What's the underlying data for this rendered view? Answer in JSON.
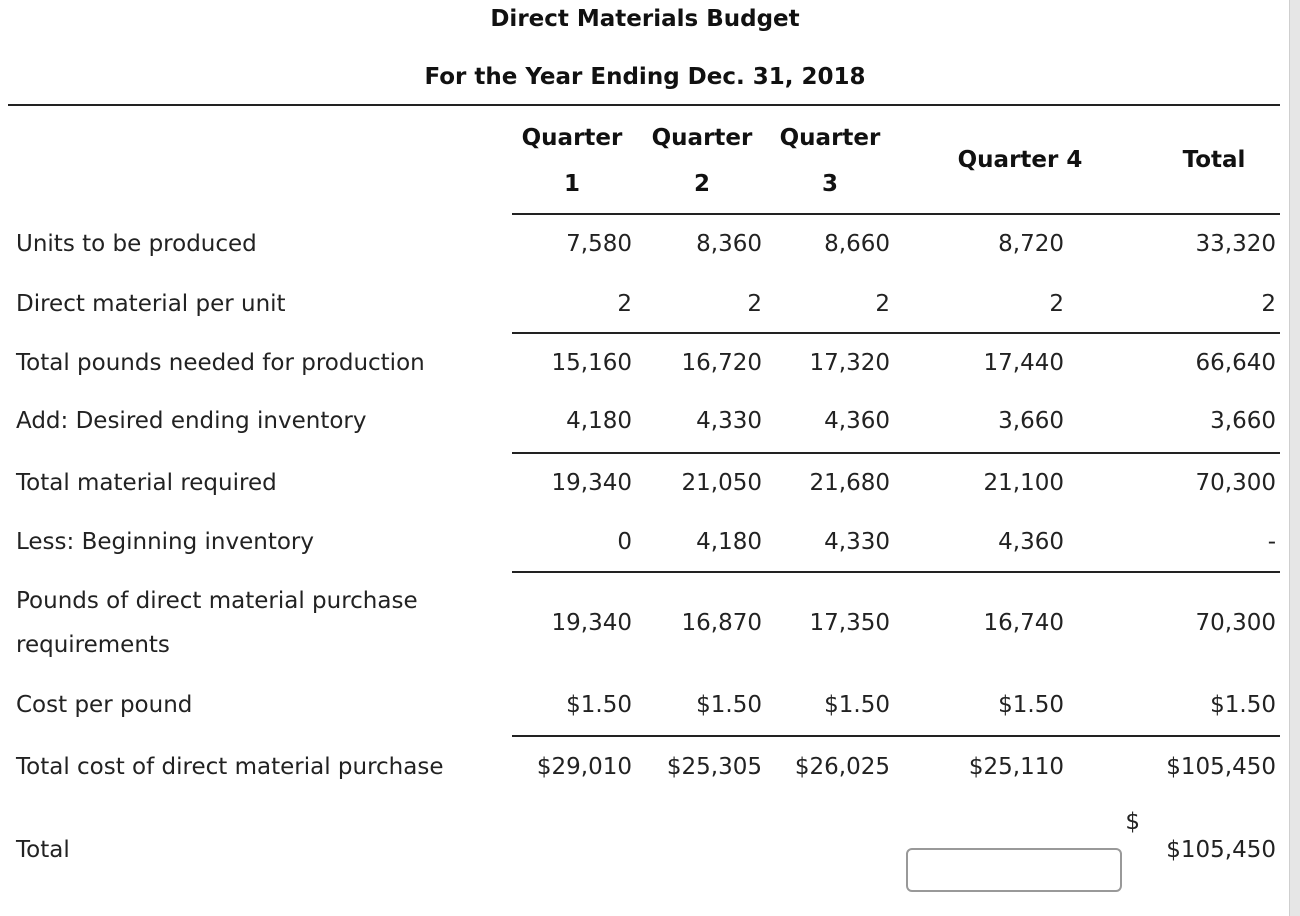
{
  "title": "Direct Materials Budget",
  "subtitle": "For the Year Ending Dec. 31, 2018",
  "headers": [
    {
      "line1": "Quarter",
      "line2": "1"
    },
    {
      "line1": "Quarter",
      "line2": "2"
    },
    {
      "line1": "Quarter",
      "line2": "3"
    },
    {
      "line1": "Quarter 4",
      "line2": ""
    },
    {
      "line1": "Total",
      "line2": ""
    }
  ],
  "rows": [
    {
      "label": "Units to be produced",
      "values": [
        "7,580",
        "8,360",
        "8,660",
        "8,720",
        "33,320"
      ]
    },
    {
      "label": "Direct material per unit",
      "values": [
        "2",
        "2",
        "2",
        "2",
        "2"
      ]
    },
    {
      "label": "Total pounds needed for production",
      "values": [
        "15,160",
        "16,720",
        "17,320",
        "17,440",
        "66,640"
      ]
    },
    {
      "label": "Add: Desired ending inventory",
      "values": [
        "4,180",
        "4,330",
        "4,360",
        "3,660",
        "3,660"
      ]
    },
    {
      "label": "Total material required",
      "values": [
        "19,340",
        "21,050",
        "21,680",
        "21,100",
        "70,300"
      ]
    },
    {
      "label": "Less: Beginning inventory",
      "values": [
        "0",
        "4,180",
        "4,330",
        "4,360",
        "-"
      ]
    },
    {
      "label": "Pounds of direct material purchase requirements",
      "values": [
        "19,340",
        "16,870",
        "17,350",
        "16,740",
        "70,300"
      ]
    },
    {
      "label": "Cost per pound",
      "values": [
        "$1.50",
        "$1.50",
        "$1.50",
        "$1.50",
        "$1.50"
      ]
    },
    {
      "label": "Total cost of direct material purchase",
      "values": [
        "$29,010",
        "$25,305",
        "$26,025",
        "$25,110",
        "$105,450"
      ]
    }
  ],
  "total_row": {
    "label": "Total",
    "currency": "$",
    "input_value": "",
    "total": "$105,450"
  }
}
